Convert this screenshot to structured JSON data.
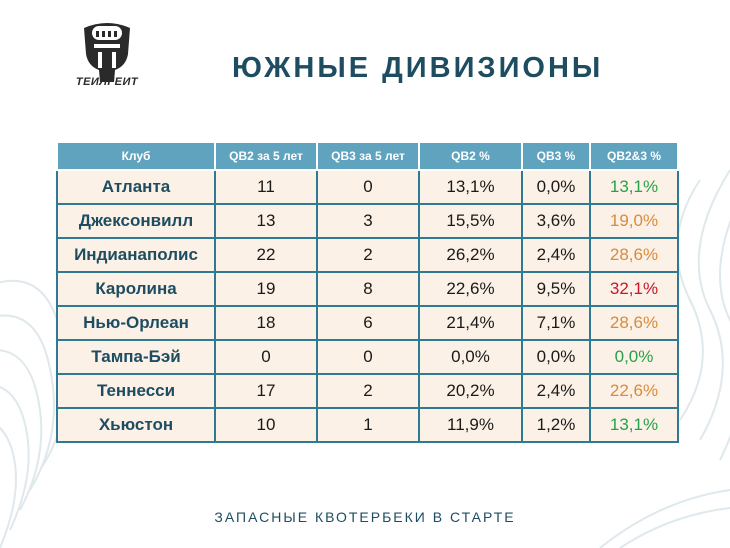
{
  "brand": {
    "logo_text": "ТЕИЛГЕИТ"
  },
  "title": "ЮЖНЫЕ ДИВИЗИОНЫ",
  "footer": "ЗАПАСНЫЕ КВОТЕРБЕКИ В СТАРТЕ",
  "colors": {
    "header_bg": "#5fa3bf",
    "cell_bg": "#fbf1e6",
    "border": "#2e7a93",
    "title": "#1e4d61",
    "green": "#27a24a",
    "orange": "#d98a3c",
    "red": "#c8182b"
  },
  "table": {
    "headers": [
      "Клуб",
      "QB2 за 5 лет",
      "QB3 за 5 лет",
      "QB2 %",
      "QB3 %",
      "QB2&3 %"
    ],
    "rows": [
      {
        "club": "Атланта",
        "qb2": "11",
        "qb3": "0",
        "qb2_pct": "13,1%",
        "qb3_pct": "0,0%",
        "total_pct": "13,1%",
        "total_color": "green"
      },
      {
        "club": "Джексонвилл",
        "qb2": "13",
        "qb3": "3",
        "qb2_pct": "15,5%",
        "qb3_pct": "3,6%",
        "total_pct": "19,0%",
        "total_color": "orange"
      },
      {
        "club": "Индианаполис",
        "qb2": "22",
        "qb3": "2",
        "qb2_pct": "26,2%",
        "qb3_pct": "2,4%",
        "total_pct": "28,6%",
        "total_color": "orange"
      },
      {
        "club": "Каролина",
        "qb2": "19",
        "qb3": "8",
        "qb2_pct": "22,6%",
        "qb3_pct": "9,5%",
        "total_pct": "32,1%",
        "total_color": "red"
      },
      {
        "club": "Нью-Орлеан",
        "qb2": "18",
        "qb3": "6",
        "qb2_pct": "21,4%",
        "qb3_pct": "7,1%",
        "total_pct": "28,6%",
        "total_color": "orange"
      },
      {
        "club": "Тампа-Бэй",
        "qb2": "0",
        "qb3": "0",
        "qb2_pct": "0,0%",
        "qb3_pct": "0,0%",
        "total_pct": "0,0%",
        "total_color": "green"
      },
      {
        "club": "Теннесси",
        "qb2": "17",
        "qb3": "2",
        "qb2_pct": "20,2%",
        "qb3_pct": "2,4%",
        "total_pct": "22,6%",
        "total_color": "orange"
      },
      {
        "club": "Хьюстон",
        "qb2": "10",
        "qb3": "1",
        "qb2_pct": "11,9%",
        "qb3_pct": "1,2%",
        "total_pct": "13,1%",
        "total_color": "green"
      }
    ]
  }
}
